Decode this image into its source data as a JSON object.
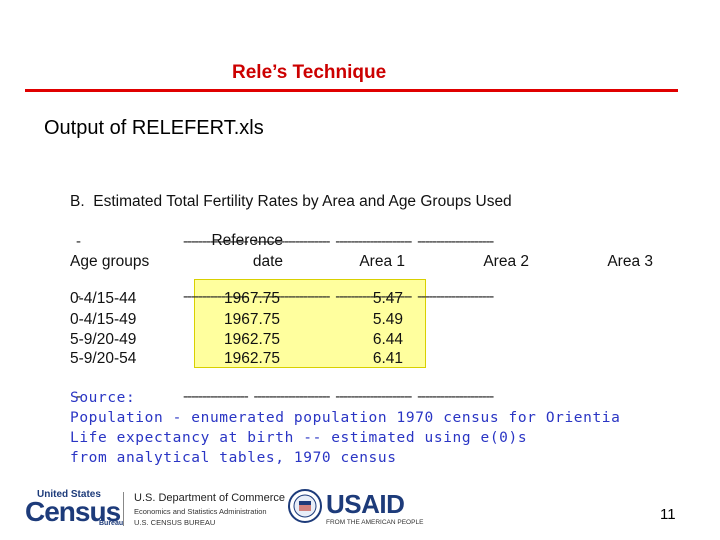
{
  "slide": {
    "title": "Rele’s Technique",
    "subtitle": "Output of RELEFERT.xls",
    "page_number": "11"
  },
  "table": {
    "title": "B.  Estimated Total Fertility Rates by Area and Age Groups Used",
    "dash_line": "-                          -----------------  --------------------  --------------------  --------------------",
    "dash_short": "-",
    "dash_cols": "-----------------  --------------------  --------------------  --------------------",
    "header_ref_line1": "Reference",
    "header_ref_line2": "date",
    "header_age": "Age groups",
    "header_area1": "Area 1",
    "header_area2": "Area 2",
    "header_area3": "Area 3",
    "rows": [
      {
        "age": "0-4/15-44",
        "ref": "1967.75",
        "area1": "5.47"
      },
      {
        "age": "0-4/15-49",
        "ref": "1967.75",
        "area1": "5.49"
      },
      {
        "age": "5-9/20-49",
        "ref": "1962.75",
        "area1": "6.44"
      },
      {
        "age": "5-9/20-54",
        "ref": "1962.75",
        "area1": "6.41"
      }
    ]
  },
  "source": {
    "line1": "Source:",
    "line2": "Population - enumerated population 1970 census for Orientia",
    "line3": "Life expectancy at birth -- estimated using e(0)s",
    "line4": "from analytical tables, 1970 census"
  },
  "footer": {
    "census_top": "United States",
    "census_word": "Census",
    "census_bureau": "Bureau",
    "doc_line1": "U.S. Department of Commerce",
    "doc_line2": "Economics and Statistics Administration",
    "doc_line3": "U.S. CENSUS BUREAU",
    "usaid": "USAID",
    "usaid_tag": "FROM THE AMERICAN PEOPLE"
  },
  "colors": {
    "title_red": "#cc0000",
    "rule_red": "#e00000",
    "highlight_yellow": "#ffff9e",
    "source_blue": "#2a35c4",
    "logo_navy": "#1d3b7a"
  }
}
